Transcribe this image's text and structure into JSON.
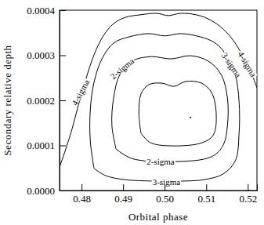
{
  "chart_data": {
    "type": "line",
    "x_label": "Orbital phase",
    "y_label": "Secondary relative depth",
    "xlim": [
      0.4747,
      0.5222
    ],
    "ylim": [
      0,
      0.0004
    ],
    "xticks": [
      0.48,
      0.49,
      {
        "value": 0.5,
        "label": "0.50"
      },
      0.51,
      0.52
    ],
    "yticks": [
      {
        "value": 0,
        "label": "0.0000"
      },
      {
        "value": 0.0001,
        "label": "0.0001"
      },
      {
        "value": 0.0002,
        "label": "0.0002"
      },
      {
        "value": 0.0003,
        "label": "0.0003"
      },
      {
        "value": 0.0004,
        "label": "0.0004"
      }
    ],
    "grid": false,
    "color": "#000000",
    "series": [
      {
        "type": "line",
        "line_style": "solid",
        "color": "#000000",
        "x": [
          0.4747,
          0.4762,
          0.4777,
          0.4792,
          0.4811,
          0.483,
          0.4853,
          0.4877,
          0.4905,
          0.4943,
          0.4981,
          0.5009,
          0.5038,
          0.5075,
          0.5104,
          0.5132,
          0.516,
          0.5185,
          0.5204,
          0.5222
        ],
        "values": [
          5.2e-05,
          9.2e-05,
          0.000136,
          0.000188,
          0.000249,
          0.000301,
          0.000344,
          0.00037,
          0.000384,
          0.00039,
          0.000393,
          0.000388,
          0.000393,
          0.00039,
          0.000381,
          0.000365,
          0.000339,
          0.000304,
          0.00027,
          0.000228
        ]
      },
      {
        "type": "line",
        "line_style": "solid",
        "color": "#000000",
        "x": [
          0.483,
          0.4821,
          0.4821,
          0.483,
          0.4849,
          0.4877,
          0.4915,
          0.4962,
          0.5,
          0.5038,
          0.5085,
          0.5122,
          0.5151,
          0.517,
          0.5179,
          0.5179,
          0.517,
          0.5141,
          0.5094,
          0.5,
          0.4905,
          0.4858,
          0.483
        ],
        "values": [
          4.9e-05,
          0.00011,
          0.000179,
          0.00024,
          0.000292,
          0.000327,
          0.000341,
          0.000348,
          0.000343,
          0.000348,
          0.000341,
          0.000327,
          0.000297,
          0.000257,
          0.000197,
          0.000127,
          6.6e-05,
          3.7e-05,
          2.4e-05,
          2.1e-05,
          2.4e-05,
          3.3e-05,
          4.9e-05
        ]
      },
      {
        "type": "line",
        "line_style": "solid",
        "color": "#000000",
        "x": [
          0.4883,
          0.4873,
          0.4877,
          0.4892,
          0.4921,
          0.4968,
          0.5015,
          0.5062,
          0.5105,
          0.5136,
          0.5151,
          0.5151,
          0.5141,
          0.5113,
          0.5015,
          0.4921,
          0.4883
        ],
        "values": [
          9.2e-05,
          0.000144,
          0.000205,
          0.000257,
          0.000287,
          0.000297,
          0.000292,
          0.000299,
          0.000287,
          0.000257,
          0.000205,
          0.000144,
          0.000101,
          7.5e-05,
          6.4e-05,
          7.1e-05,
          9.2e-05
        ]
      },
      {
        "type": "line",
        "line_style": "solid",
        "color": "#000000",
        "x": [
          0.4943,
          0.4938,
          0.4943,
          0.4962,
          0.4994,
          0.5022,
          0.5051,
          0.5089,
          0.5113,
          0.5124,
          0.5117,
          0.509,
          0.5022,
          0.4966,
          0.4943
        ],
        "values": [
          0.000127,
          0.00017,
          0.000214,
          0.000235,
          0.000238,
          0.000231,
          0.000242,
          0.000238,
          0.000217,
          0.00017,
          0.000123,
          0.000106,
          9.9e-05,
          0.000106,
          0.000127
        ]
      },
      {
        "type": "scatter",
        "marker": "dot",
        "color": "#000000",
        "x": [
          0.5062
        ],
        "values": [
          0.000162
        ]
      }
    ],
    "annotations": [
      {
        "text": "4-sigma",
        "x": 0.4798,
        "y": 0.000217
      },
      {
        "text": "2-sigma",
        "x": 0.4898,
        "y": 0.00027
      },
      {
        "text": "3-sigma",
        "x": 0.516,
        "y": 0.000278
      },
      {
        "text": "4-sigma",
        "x": 0.5198,
        "y": 0.00028
      },
      {
        "text": "2-sigma",
        "x": 0.499,
        "y": 6.3e-05
      },
      {
        "text": "3-sigma",
        "x": 0.5004,
        "y": 1.9e-05
      }
    ]
  }
}
